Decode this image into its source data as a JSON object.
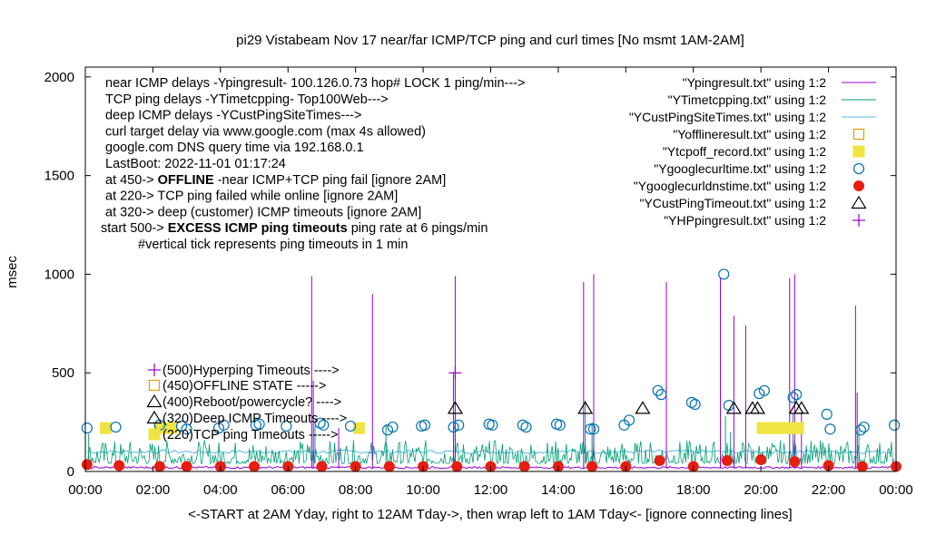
{
  "chart_data": {
    "type": "line",
    "title": "pi29 Vistabeam Nov 17  near/far ICMP/TCP ping and curl times [No msmt 1AM-2AM]",
    "xlabel": "<-START at 2AM Yday, right to 12AM Tday->, then wrap left to 1AM Tday<- [ignore connecting lines]",
    "ylabel": "msec",
    "xlim": [
      0,
      24
    ],
    "ylim": [
      0,
      2050
    ],
    "grid": false,
    "legend_position": "top-right",
    "x_ticks": [
      "00:00",
      "02:00",
      "04:00",
      "06:00",
      "08:00",
      "10:00",
      "12:00",
      "14:00",
      "16:00",
      "18:00",
      "20:00",
      "22:00",
      "00:00"
    ],
    "x_tick_values": [
      0,
      2,
      4,
      6,
      8,
      10,
      12,
      14,
      16,
      18,
      20,
      22,
      24
    ],
    "y_ticks": [
      "0",
      "500",
      "1000",
      "1500",
      "2000"
    ],
    "y_tick_values": [
      0,
      500,
      1000,
      1500,
      2000
    ],
    "notes": [
      {
        "segments": [
          {
            "text": "near ICMP delays -Ypingresult- 100.126.0.73 hop# LOCK 1 ping/min--->",
            "bold": false
          }
        ]
      },
      {
        "segments": [
          {
            "text": "TCP ping delays -YTimetcpping- Top100Web--->",
            "bold": false
          }
        ]
      },
      {
        "segments": [
          {
            "text": "deep ICMP delays -YCustPingSiteTimes--->",
            "bold": false
          }
        ]
      },
      {
        "segments": [
          {
            "text": "curl target delay via www.google.com (max 4s allowed)",
            "bold": false
          }
        ]
      },
      {
        "segments": [
          {
            "text": "google.com DNS query time via 192.168.0.1",
            "bold": false
          }
        ]
      },
      {
        "segments": [
          {
            "text": "LastBoot: 2022-11-01 01:17:24",
            "bold": false
          }
        ]
      },
      {
        "segments": [
          {
            "text": "at 450-> ",
            "bold": false
          },
          {
            "text": "OFFLINE",
            "bold": true
          },
          {
            "text": " -near ICMP+TCP ping fail [ignore 2AM]",
            "bold": false
          }
        ]
      },
      {
        "segments": [
          {
            "text": "at 220-> TCP ping failed while online [ignore 2AM]",
            "bold": false
          }
        ]
      },
      {
        "segments": [
          {
            "text": "at 320-> deep (customer) ICMP timeouts [ignore 2AM]",
            "bold": false
          }
        ]
      },
      {
        "segments": [
          {
            "text": "start 500-> ",
            "bold": false
          },
          {
            "text": "EXCESS ICMP ping timeouts",
            "bold": true
          },
          {
            "text": " ping rate at 6 pings/min",
            "bold": false
          }
        ]
      },
      {
        "segments": [
          {
            "text": "#vertical tick represents ping timeouts in 1 min",
            "bold": false
          }
        ]
      }
    ],
    "annotations": [
      {
        "text": "(500)Hyperping Timeouts ---->"
      },
      {
        "text": "(450)OFFLINE STATE ----->"
      },
      {
        "text": "(400)Reboot/powercycle? ---->"
      },
      {
        "text": "(320)Deep ICMP Timeouts ---->"
      },
      {
        "text": "(220)TCP ping Timeouts ----->"
      }
    ],
    "legend": [
      {
        "label": "\"Ypingresult.txt\" using 1:2",
        "style": "line",
        "color": "#9400d3"
      },
      {
        "label": "\"YTimetcpping.txt\" using 1:2",
        "style": "line",
        "color": "#009e73"
      },
      {
        "label": "\"YCustPingSiteTimes.txt\" using 1:2",
        "style": "line",
        "color": "#56b4e9"
      },
      {
        "label": "\"Yofflineresult.txt\" using 1:2",
        "style": "open-square",
        "color": "#e69f00"
      },
      {
        "label": "\"Ytcpoff_record.txt\" using 1:2",
        "style": "filled-square",
        "color": "#f0e442"
      },
      {
        "label": "\"Ygooglecurltime.txt\" using 1:2",
        "style": "open-circle",
        "color": "#0072b2"
      },
      {
        "label": "\"Ygooglecurldnstime.txt\" using 1:2",
        "style": "filled-circle",
        "color": "#e51e10"
      },
      {
        "label": "\"YCustPingTimeout.txt\" using 1:2",
        "style": "open-triangle",
        "color": "#000000"
      },
      {
        "label": "\"YHPpingresult.txt\" using 1:2",
        "style": "plus",
        "color": "#9400d3"
      }
    ],
    "series": [
      {
        "name": "\"Ypingresult.txt\" using 1:2",
        "baseline": 15,
        "spikes": [
          {
            "x": 6.7,
            "y": 990
          },
          {
            "x": 6.75,
            "y": 460
          },
          {
            "x": 7.5,
            "y": 220
          },
          {
            "x": 8.5,
            "y": 900
          },
          {
            "x": 10.95,
            "y": 990
          },
          {
            "x": 10.9,
            "y": 500
          },
          {
            "x": 14.75,
            "y": 960
          },
          {
            "x": 15.05,
            "y": 1000
          },
          {
            "x": 17.2,
            "y": 960
          },
          {
            "x": 18.8,
            "y": 980
          },
          {
            "x": 19.2,
            "y": 790
          },
          {
            "x": 19.55,
            "y": 740
          },
          {
            "x": 20.85,
            "y": 980
          },
          {
            "x": 21.0,
            "y": 1000
          },
          {
            "x": 21.2,
            "y": 300
          },
          {
            "x": 22.8,
            "y": 840
          },
          {
            "x": 22.85,
            "y": 400
          }
        ]
      },
      {
        "name": "\"YTimetcpping.txt\" using 1:2",
        "baseline": 40,
        "noise_max": 120,
        "spikes": [
          {
            "x": 0.1,
            "y": 190
          },
          {
            "x": 6.8,
            "y": 230
          },
          {
            "x": 8.9,
            "y": 240
          },
          {
            "x": 10.9,
            "y": 250
          },
          {
            "x": 14.8,
            "y": 360
          },
          {
            "x": 15.0,
            "y": 250
          },
          {
            "x": 18.95,
            "y": 280
          },
          {
            "x": 19.1,
            "y": 200
          },
          {
            "x": 20.95,
            "y": 290
          },
          {
            "x": 22.9,
            "y": 210
          }
        ]
      },
      {
        "name": "\"YCustPingSiteTimes.txt\" using 1:2",
        "baseline": 100
      },
      {
        "name": "\"Yofflineresult.txt\" using 1:2",
        "points": []
      },
      {
        "name": "\"Ytcpoff_record.txt\" using 1:2",
        "points": [
          {
            "x": 0.6,
            "y": 220
          },
          {
            "x": 2.2,
            "y": 220
          },
          {
            "x": 2.55,
            "y": 220
          },
          {
            "x": 8.1,
            "y": 220
          },
          {
            "x": 20.05,
            "y": 220
          },
          {
            "x": 20.2,
            "y": 220
          },
          {
            "x": 20.35,
            "y": 220
          },
          {
            "x": 20.5,
            "y": 220
          },
          {
            "x": 20.65,
            "y": 220
          },
          {
            "x": 20.8,
            "y": 220
          },
          {
            "x": 20.95,
            "y": 220
          },
          {
            "x": 21.1,
            "y": 220
          }
        ]
      },
      {
        "name": "\"Ygooglecurltime.txt\" using 1:2",
        "points": [
          {
            "x": 0.05,
            "y": 220
          },
          {
            "x": 0.9,
            "y": 225
          },
          {
            "x": 2.2,
            "y": 235
          },
          {
            "x": 2.85,
            "y": 230
          },
          {
            "x": 3.0,
            "y": 215
          },
          {
            "x": 3.95,
            "y": 220
          },
          {
            "x": 4.1,
            "y": 235
          },
          {
            "x": 5.05,
            "y": 235
          },
          {
            "x": 5.15,
            "y": 240
          },
          {
            "x": 5.95,
            "y": 230
          },
          {
            "x": 6.95,
            "y": 245
          },
          {
            "x": 7.05,
            "y": 235
          },
          {
            "x": 7.85,
            "y": 230
          },
          {
            "x": 8.95,
            "y": 210
          },
          {
            "x": 9.1,
            "y": 225
          },
          {
            "x": 9.95,
            "y": 230
          },
          {
            "x": 10.05,
            "y": 235
          },
          {
            "x": 10.9,
            "y": 225
          },
          {
            "x": 11.05,
            "y": 235
          },
          {
            "x": 11.95,
            "y": 240
          },
          {
            "x": 12.05,
            "y": 235
          },
          {
            "x": 12.95,
            "y": 235
          },
          {
            "x": 13.05,
            "y": 225
          },
          {
            "x": 13.95,
            "y": 240
          },
          {
            "x": 14.05,
            "y": 235
          },
          {
            "x": 14.95,
            "y": 215
          },
          {
            "x": 15.05,
            "y": 215
          },
          {
            "x": 15.95,
            "y": 235
          },
          {
            "x": 16.1,
            "y": 260
          },
          {
            "x": 16.95,
            "y": 410
          },
          {
            "x": 17.05,
            "y": 390
          },
          {
            "x": 17.95,
            "y": 350
          },
          {
            "x": 18.05,
            "y": 340
          },
          {
            "x": 18.9,
            "y": 1000
          },
          {
            "x": 19.05,
            "y": 335
          },
          {
            "x": 19.95,
            "y": 395
          },
          {
            "x": 20.1,
            "y": 410
          },
          {
            "x": 20.95,
            "y": 375
          },
          {
            "x": 21.05,
            "y": 390
          },
          {
            "x": 21.95,
            "y": 290
          },
          {
            "x": 22.05,
            "y": 215
          },
          {
            "x": 22.95,
            "y": 210
          },
          {
            "x": 23.05,
            "y": 225
          },
          {
            "x": 23.95,
            "y": 235
          }
        ]
      },
      {
        "name": "\"Ygooglecurldnstime.txt\" using 1:2",
        "points": [
          {
            "x": 0.05,
            "y": 35
          },
          {
            "x": 1.0,
            "y": 30
          },
          {
            "x": 2.2,
            "y": 25
          },
          {
            "x": 3.0,
            "y": 25
          },
          {
            "x": 4.0,
            "y": 25
          },
          {
            "x": 5.0,
            "y": 25
          },
          {
            "x": 6.0,
            "y": 25
          },
          {
            "x": 7.0,
            "y": 25
          },
          {
            "x": 8.0,
            "y": 25
          },
          {
            "x": 9.0,
            "y": 25
          },
          {
            "x": 10.0,
            "y": 25
          },
          {
            "x": 11.0,
            "y": 25
          },
          {
            "x": 12.0,
            "y": 25
          },
          {
            "x": 13.0,
            "y": 25
          },
          {
            "x": 14.0,
            "y": 25
          },
          {
            "x": 15.0,
            "y": 25
          },
          {
            "x": 16.0,
            "y": 25
          },
          {
            "x": 17.0,
            "y": 55
          },
          {
            "x": 18.0,
            "y": 25
          },
          {
            "x": 19.0,
            "y": 55
          },
          {
            "x": 20.0,
            "y": 60
          },
          {
            "x": 21.0,
            "y": 50
          },
          {
            "x": 22.0,
            "y": 30
          },
          {
            "x": 23.0,
            "y": 25
          },
          {
            "x": 24.0,
            "y": 25
          }
        ]
      },
      {
        "name": "\"YCustPingTimeout.txt\" using 1:2",
        "points": [
          {
            "x": 10.95,
            "y": 320
          },
          {
            "x": 14.8,
            "y": 320
          },
          {
            "x": 16.5,
            "y": 320
          },
          {
            "x": 19.2,
            "y": 320
          },
          {
            "x": 19.75,
            "y": 320
          },
          {
            "x": 19.9,
            "y": 320
          },
          {
            "x": 21.05,
            "y": 320
          },
          {
            "x": 21.2,
            "y": 320
          }
        ]
      },
      {
        "name": "\"YHPpingresult.txt\" using 1:2",
        "points": [
          {
            "x": 10.95,
            "y": 500
          }
        ]
      }
    ]
  }
}
